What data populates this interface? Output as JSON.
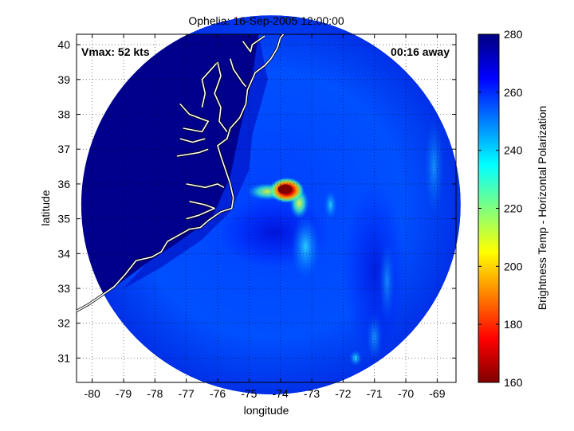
{
  "chart_data": [
    {
      "type": "heatmap",
      "title": "Ophelia: 16-Sep-2005 12:00:00",
      "xlabel": "longitude",
      "ylabel": "latitude",
      "xlim": [
        -80.5,
        -68.4
      ],
      "ylim": [
        30.3,
        40.3
      ],
      "xticks": [
        -80,
        -79,
        -78,
        -77,
        -76,
        -75,
        -74,
        -73,
        -72,
        -71,
        -70,
        -69
      ],
      "yticks": [
        31,
        32,
        33,
        34,
        35,
        36,
        37,
        38,
        39,
        40
      ],
      "xtick_labels": [
        "-80",
        "-79",
        "-78",
        "-77",
        "-76",
        "-75",
        "-74",
        "-73",
        "-72",
        "-71",
        "-70",
        "-69"
      ],
      "ytick_labels": [
        "31",
        "32",
        "33",
        "34",
        "35",
        "36",
        "37",
        "38",
        "39",
        "40"
      ],
      "grid": true,
      "field": {
        "swath_center": [
          -74.3,
          35.4
        ],
        "swath_radius_deg": 6.0,
        "background_value": 262,
        "land_value": 280,
        "hotspots": [
          {
            "lon": -73.8,
            "lat": 35.82,
            "value": 165
          },
          {
            "lon": -73.5,
            "lat": 35.6,
            "value": 205
          },
          {
            "lon": -73.2,
            "lat": 35.3,
            "value": 225
          },
          {
            "lon": -74.5,
            "lat": 35.75,
            "value": 235
          }
        ]
      },
      "annotations": {
        "vmax": "Vmax: 52 kts",
        "time_away": "00:16 away"
      }
    },
    {
      "type": "colorbar",
      "label": "Brightness Temp - Horizontal Polarization",
      "range": [
        160,
        280
      ],
      "ticks": [
        160,
        180,
        200,
        220,
        240,
        260,
        280
      ],
      "tick_labels": [
        "160",
        "180",
        "200",
        "220",
        "240",
        "260",
        "280"
      ],
      "colormap": "jet"
    }
  ]
}
